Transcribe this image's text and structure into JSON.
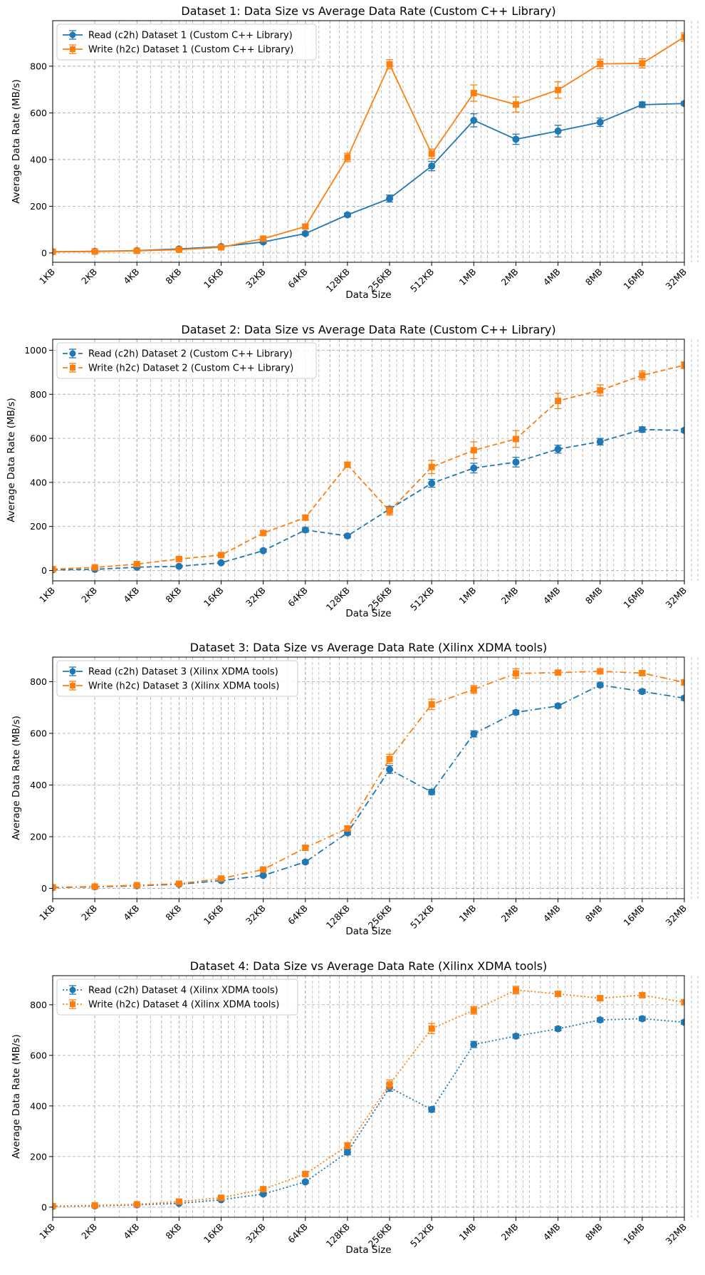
{
  "chart_data": [
    {
      "type": "line",
      "title": "Dataset 1: Data Size vs Average Data Rate (Custom C++ Library)",
      "xlabel": "Data Size",
      "ylabel": "Average Data Rate (MB/s)",
      "categories": [
        "1KB",
        "2KB",
        "4KB",
        "8KB",
        "16KB",
        "32KB",
        "64KB",
        "128KB",
        "256KB",
        "512KB",
        "1MB",
        "2MB",
        "4MB",
        "8MB",
        "16MB",
        "32MB"
      ],
      "x_scale": "log2",
      "ylim": [
        -40,
        995
      ],
      "yticks": [
        0,
        200,
        400,
        600,
        800
      ],
      "grid": true,
      "legend": "upper left",
      "line_style": "solid",
      "series": [
        {
          "name": "Read (c2h) Dataset 1 (Custom C++ Library)",
          "color": "#1f77b4",
          "marker": "circle",
          "values": [
            5,
            7,
            10,
            17,
            27,
            47,
            83,
            163,
            233,
            372,
            568,
            487,
            522,
            560,
            635,
            640
          ],
          "errors": [
            3,
            3,
            3,
            3,
            3,
            5,
            7,
            8,
            15,
            20,
            28,
            22,
            25,
            18,
            12,
            8
          ]
        },
        {
          "name": "Write (h2c) Dataset 1 (Custom C++ Library)",
          "color": "#ff7f0e",
          "marker": "square",
          "values": [
            5,
            6,
            9,
            14,
            24,
            61,
            113,
            409,
            808,
            425,
            685,
            636,
            698,
            810,
            812,
            925
          ],
          "errors": [
            3,
            3,
            3,
            3,
            4,
            6,
            8,
            18,
            20,
            20,
            35,
            32,
            35,
            20,
            20,
            18
          ]
        }
      ]
    },
    {
      "type": "line",
      "title": "Dataset 2: Data Size vs Average Data Rate (Custom C++ Library)",
      "xlabel": "Data Size",
      "ylabel": "Average Data Rate (MB/s)",
      "categories": [
        "1KB",
        "2KB",
        "4KB",
        "8KB",
        "16KB",
        "32KB",
        "64KB",
        "128KB",
        "256KB",
        "512KB",
        "1MB",
        "2MB",
        "4MB",
        "8MB",
        "16MB",
        "32MB"
      ],
      "x_scale": "log2",
      "ylim": [
        -47,
        1050
      ],
      "yticks": [
        0,
        200,
        400,
        600,
        800,
        1000
      ],
      "grid": true,
      "legend": "upper left",
      "line_style": "dashed",
      "series": [
        {
          "name": "Read (c2h) Dataset 2 (Custom C++ Library)",
          "color": "#1f77b4",
          "marker": "circle",
          "values": [
            3,
            5,
            15,
            19,
            35,
            90,
            184,
            157,
            279,
            396,
            465,
            492,
            551,
            585,
            640,
            636
          ],
          "errors": [
            3,
            3,
            4,
            4,
            4,
            6,
            10,
            8,
            12,
            18,
            22,
            22,
            18,
            15,
            12,
            8
          ]
        },
        {
          "name": "Write (h2c) Dataset 2 (Custom C++ Library)",
          "color": "#ff7f0e",
          "marker": "square",
          "values": [
            6,
            14,
            29,
            52,
            70,
            170,
            240,
            480,
            270,
            470,
            546,
            597,
            770,
            818,
            886,
            932
          ],
          "errors": [
            3,
            3,
            4,
            4,
            5,
            10,
            10,
            12,
            18,
            30,
            38,
            38,
            35,
            25,
            20,
            15
          ]
        }
      ]
    },
    {
      "type": "line",
      "title": "Dataset 3: Data Size vs Average Data Rate (Xilinx XDMA tools)",
      "xlabel": "Data Size",
      "ylabel": "Average Data Rate (MB/s)",
      "categories": [
        "1KB",
        "2KB",
        "4KB",
        "8KB",
        "16KB",
        "32KB",
        "64KB",
        "128KB",
        "256KB",
        "512KB",
        "1MB",
        "2MB",
        "4MB",
        "8MB",
        "16MB",
        "32MB"
      ],
      "x_scale": "log2",
      "ylim": [
        -40,
        895
      ],
      "yticks": [
        0,
        200,
        400,
        600,
        800
      ],
      "grid": true,
      "legend": "upper left",
      "line_style": "dashdot",
      "series": [
        {
          "name": "Read (c2h) Dataset 3 (Xilinx XDMA tools)",
          "color": "#1f77b4",
          "marker": "circle",
          "values": [
            3,
            6,
            10,
            16,
            30,
            50,
            102,
            215,
            460,
            373,
            598,
            681,
            706,
            787,
            762,
            736
          ],
          "errors": [
            2,
            2,
            3,
            3,
            3,
            4,
            6,
            8,
            15,
            10,
            12,
            8,
            8,
            8,
            8,
            8
          ]
        },
        {
          "name": "Write (h2c) Dataset 3 (Xilinx XDMA tools)",
          "color": "#ff7f0e",
          "marker": "square",
          "values": [
            4,
            7,
            12,
            18,
            38,
            73,
            157,
            232,
            501,
            712,
            770,
            832,
            835,
            840,
            833,
            797
          ],
          "errors": [
            2,
            2,
            3,
            3,
            4,
            5,
            8,
            10,
            18,
            20,
            15,
            18,
            8,
            8,
            8,
            8
          ]
        }
      ]
    },
    {
      "type": "line",
      "title": "Dataset 4: Data Size vs Average Data Rate (Xilinx XDMA tools)",
      "xlabel": "Data Size",
      "ylabel": "Average Data Rate (MB/s)",
      "categories": [
        "1KB",
        "2KB",
        "4KB",
        "8KB",
        "16KB",
        "32KB",
        "64KB",
        "128KB",
        "256KB",
        "512KB",
        "1MB",
        "2MB",
        "4MB",
        "8MB",
        "16MB",
        "32MB"
      ],
      "x_scale": "log2",
      "ylim": [
        -40,
        915
      ],
      "yticks": [
        0,
        200,
        400,
        600,
        800
      ],
      "grid": true,
      "legend": "upper left",
      "line_style": "dotted",
      "series": [
        {
          "name": "Read (c2h) Dataset 4 (Xilinx XDMA tools)",
          "color": "#1f77b4",
          "marker": "circle",
          "values": [
            3,
            5,
            9,
            15,
            29,
            52,
            100,
            217,
            473,
            386,
            643,
            676,
            705,
            740,
            745,
            731
          ],
          "errors": [
            2,
            2,
            3,
            3,
            3,
            4,
            6,
            10,
            15,
            10,
            12,
            8,
            8,
            8,
            8,
            8
          ]
        },
        {
          "name": "Write (h2c) Dataset 4 (Xilinx XDMA tools)",
          "color": "#ff7f0e",
          "marker": "square",
          "values": [
            4,
            7,
            11,
            22,
            37,
            71,
            131,
            243,
            485,
            706,
            778,
            858,
            843,
            826,
            838,
            810
          ],
          "errors": [
            2,
            2,
            3,
            3,
            4,
            5,
            8,
            12,
            18,
            20,
            15,
            15,
            8,
            8,
            8,
            8
          ]
        }
      ]
    }
  ]
}
